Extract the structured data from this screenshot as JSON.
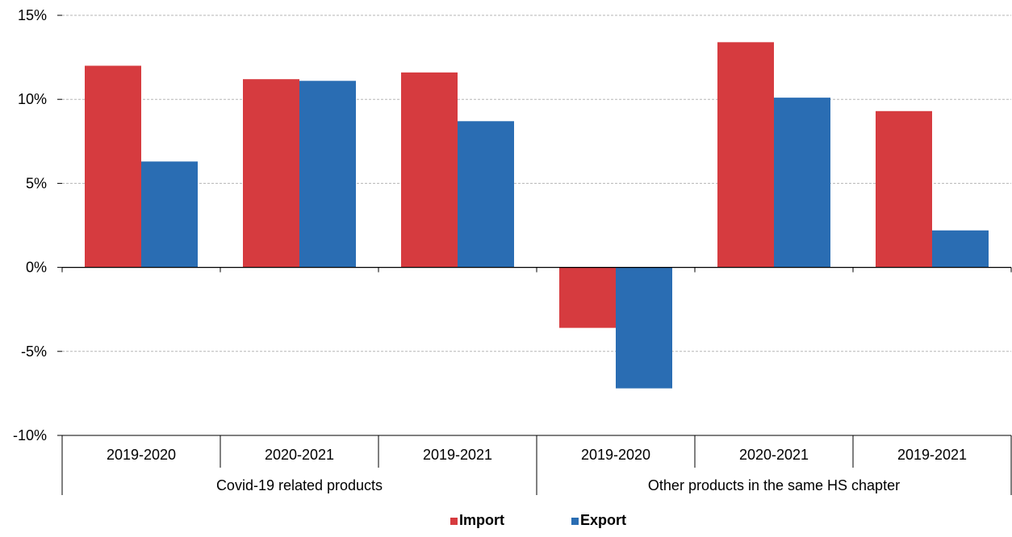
{
  "chart_data": {
    "type": "bar",
    "groups": [
      {
        "label": "Covid-19 related products",
        "categories": [
          "2019-2020",
          "2020-2021",
          "2019-2021"
        ]
      },
      {
        "label": "Other products in the same HS chapter",
        "categories": [
          "2019-2020",
          "2020-2021",
          "2019-2021"
        ]
      }
    ],
    "categories": [
      "2019-2020",
      "2020-2021",
      "2019-2021",
      "2019-2020",
      "2020-2021",
      "2019-2021"
    ],
    "series": [
      {
        "name": "Import",
        "color": "#d63b3f",
        "values": [
          12.0,
          11.2,
          11.6,
          -3.6,
          13.4,
          9.3
        ]
      },
      {
        "name": "Export",
        "color": "#2a6db3",
        "values": [
          6.3,
          11.1,
          8.7,
          -7.2,
          10.1,
          2.2
        ]
      }
    ],
    "ylim": [
      -10,
      15
    ],
    "yticks": [
      15,
      10,
      5,
      0,
      -5,
      -10
    ],
    "ytick_labels": [
      "15%",
      "10%",
      "5%",
      "0%",
      "-5%",
      "-10%"
    ],
    "title": "",
    "xlabel": "",
    "ylabel": "",
    "grid": true,
    "legend": "bottom-center"
  }
}
